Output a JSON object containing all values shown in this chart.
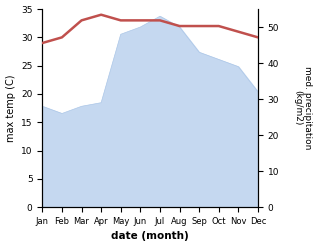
{
  "months": [
    "Jan",
    "Feb",
    "Mar",
    "Apr",
    "May",
    "Jun",
    "Jul",
    "Aug",
    "Sep",
    "Oct",
    "Nov",
    "Dec"
  ],
  "temp": [
    29,
    30,
    33,
    34,
    33,
    33,
    33,
    32,
    32,
    32,
    31,
    30
  ],
  "precip": [
    28,
    26,
    28,
    29,
    48,
    50,
    53,
    50,
    43,
    41,
    39,
    32
  ],
  "temp_color": "#c0504d",
  "precip_color": "#c5d8f0",
  "precip_edge_color": "#aec8e8",
  "xlabel": "date (month)",
  "ylabel_left": "max temp (C)",
  "ylabel_right": "med. precipitation\n(kg/m2)",
  "ylim_left": [
    0,
    35
  ],
  "ylim_right": [
    0,
    55
  ],
  "yticks_left": [
    0,
    5,
    10,
    15,
    20,
    25,
    30,
    35
  ],
  "yticks_right": [
    0,
    10,
    20,
    30,
    40,
    50
  ],
  "bg_color": "#ffffff"
}
